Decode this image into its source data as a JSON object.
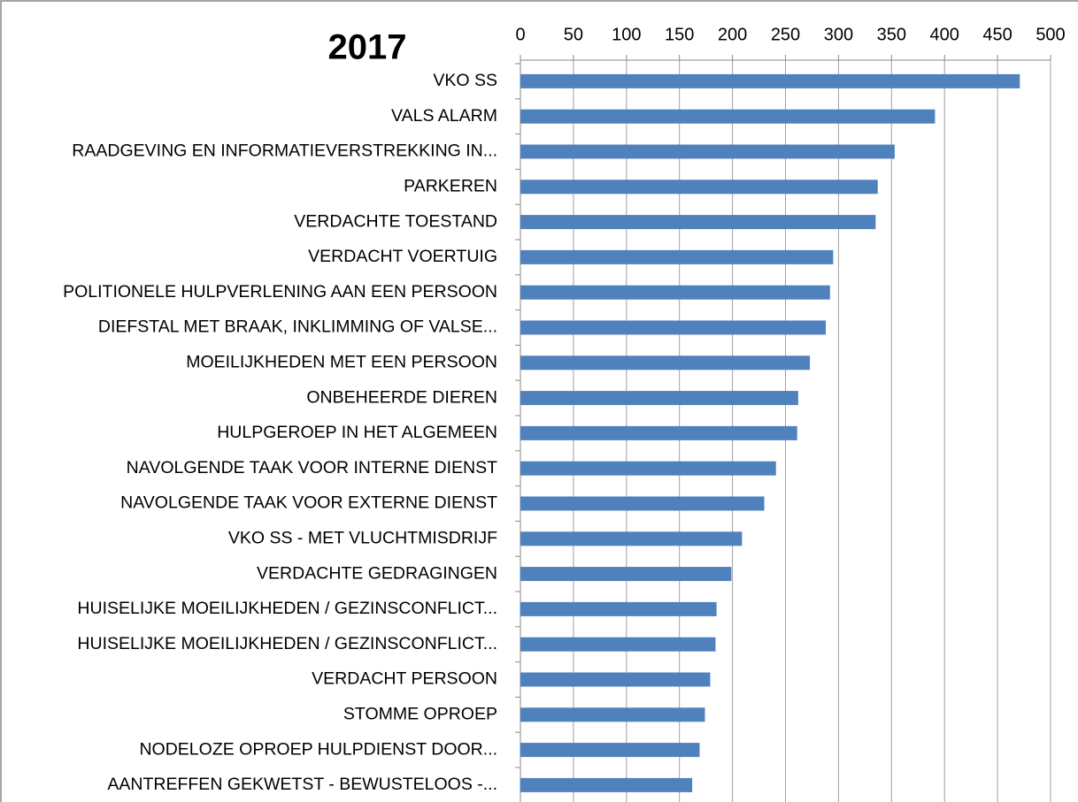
{
  "chart_data": {
    "type": "bar",
    "orientation": "horizontal",
    "title": "2017",
    "categories": [
      "VKO SS",
      "VALS ALARM",
      "RAADGEVING EN INFORMATIEVERSTREKKING IN...",
      "PARKEREN",
      "VERDACHTE TOESTAND",
      "VERDACHT VOERTUIG",
      "POLITIONELE HULPVERLENING AAN EEN PERSOON",
      "DIEFSTAL MET BRAAK, INKLIMMING OF VALSE...",
      "MOEILIJKHEDEN MET EEN PERSOON",
      "ONBEHEERDE DIEREN",
      "HULPGEROEP IN HET ALGEMEEN",
      "NAVOLGENDE TAAK VOOR INTERNE DIENST",
      "NAVOLGENDE TAAK VOOR EXTERNE DIENST",
      "VKO SS - MET VLUCHTMISDRIJF",
      "VERDACHTE GEDRAGINGEN",
      "HUISELIJKE MOEILIJKHEDEN / GEZINSCONFLICT...",
      "HUISELIJKE MOEILIJKHEDEN / GEZINSCONFLICT...",
      "VERDACHT PERSOON",
      "STOMME OPROEP",
      "NODELOZE OPROEP HULPDIENST DOOR...",
      "AANTREFFEN GEKWETST - BEWUSTELOOS -..."
    ],
    "values": [
      471,
      391,
      353,
      337,
      335,
      295,
      292,
      288,
      273,
      262,
      261,
      241,
      230,
      209,
      199,
      185,
      184,
      179,
      174,
      169,
      162
    ],
    "color": "#4f81bd",
    "xlim": [
      0,
      500
    ],
    "xticks": [
      0,
      50,
      100,
      150,
      200,
      250,
      300,
      350,
      400,
      450,
      500
    ],
    "grid": true
  }
}
